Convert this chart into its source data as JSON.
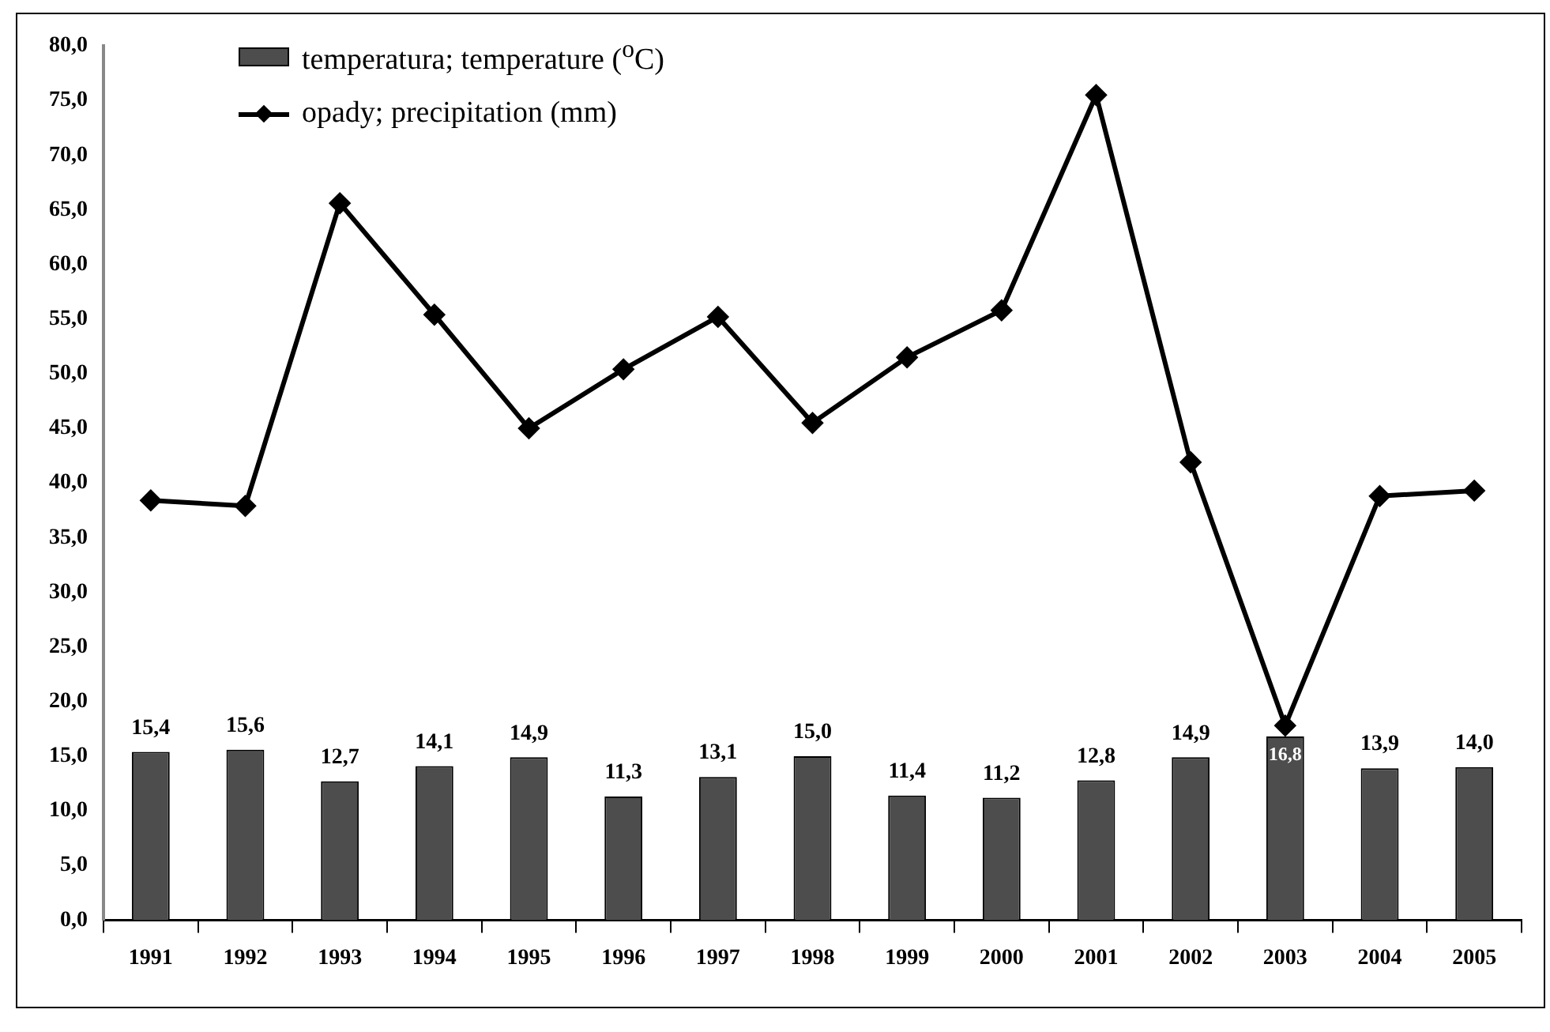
{
  "chart_data": {
    "type": "bar",
    "categories": [
      "1991",
      "1992",
      "1993",
      "1994",
      "1995",
      "1996",
      "1997",
      "1998",
      "1999",
      "2000",
      "2001",
      "2002",
      "2003",
      "2004",
      "2005"
    ],
    "series": [
      {
        "name": "temperatura; temperature ($^{o}$C)",
        "color": "#4d4d4d",
        "values": [
          15.4,
          15.6,
          12.7,
          14.1,
          14.9,
          11.3,
          13.1,
          15.0,
          11.4,
          11.2,
          12.8,
          14.9,
          16.8,
          13.9,
          14.0
        ],
        "value_labels": [
          "15,4",
          "15,6",
          "12,7",
          "14,1",
          "14,9",
          "11,3",
          "13,1",
          "15,0",
          "11,4",
          "11,2",
          "12,8",
          "14,9",
          "16,8",
          "13,9",
          "14,0"
        ]
      },
      {
        "name": "opady; precipitation (mm)",
        "type": "line",
        "color": "#000000",
        "marker": "diamond",
        "values": [
          38.4,
          37.9,
          65.6,
          55.4,
          45.0,
          50.4,
          55.2,
          45.5,
          51.5,
          55.8,
          75.5,
          41.9,
          17.8,
          38.8,
          39.3
        ]
      }
    ],
    "ylim": [
      0,
      80
    ],
    "yticks": [
      {
        "value": 0,
        "label": "0,0"
      },
      {
        "value": 5,
        "label": "5,0"
      },
      {
        "value": 10,
        "label": "10,0"
      },
      {
        "value": 15,
        "label": "15,0"
      },
      {
        "value": 20,
        "label": "20,0"
      },
      {
        "value": 25,
        "label": "25,0"
      },
      {
        "value": 30,
        "label": "30,0"
      },
      {
        "value": 35,
        "label": "35,0"
      },
      {
        "value": 40,
        "label": "40,0"
      },
      {
        "value": 45,
        "label": "45,0"
      },
      {
        "value": 50,
        "label": "50,0"
      },
      {
        "value": 55,
        "label": "55,0"
      },
      {
        "value": 60,
        "label": "60,0"
      },
      {
        "value": 65,
        "label": "65,0"
      },
      {
        "value": 70,
        "label": "70,0"
      },
      {
        "value": 75,
        "label": "75,0"
      },
      {
        "value": 80,
        "label": "80,0"
      }
    ],
    "grid": false,
    "legend": "top left"
  }
}
